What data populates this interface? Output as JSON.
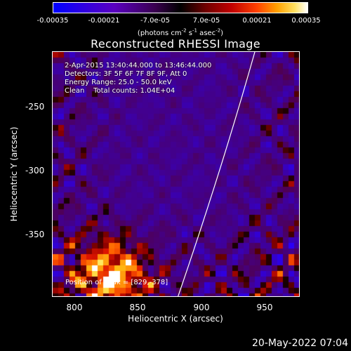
{
  "colorbar": {
    "ticks": [
      "-0.00035",
      "-0.00021",
      "-7.0e-05",
      "7.0e-05",
      "0.00021",
      "0.00035"
    ],
    "unit": "(photons cm-2 s-1 asec-2)"
  },
  "chart_data": {
    "type": "heatmap",
    "title": "Reconstructed RHESSI Image",
    "xlabel": "Heliocentric X (arcsec)",
    "ylabel": "Heliocentric Y (arcsec)",
    "xlim": [
      782,
      978
    ],
    "ylim": [
      -396,
      -204
    ],
    "x_ticks": [
      "800",
      "850",
      "900",
      "950"
    ],
    "y_ticks": [
      "-250",
      "-300",
      "-350"
    ],
    "color_range": [
      -0.00035,
      0.00035
    ],
    "colormap": "blue-black-red-yellow-white",
    "annotations": [
      "2-Apr-2015 13:40:44.000 to 13:46:44.000",
      "Detectors: 3F 5F 6F 7F 8F 9F, Att 0",
      "Energy Range: 25.0 - 50.0 keV",
      "Clean    Total counts: 1.04E+04"
    ],
    "peak_label": "Position of Peak = [829,-378]",
    "peak": [
      829,
      -378
    ]
  },
  "footer": {
    "timestamp": "20-May-2022 07:04"
  }
}
